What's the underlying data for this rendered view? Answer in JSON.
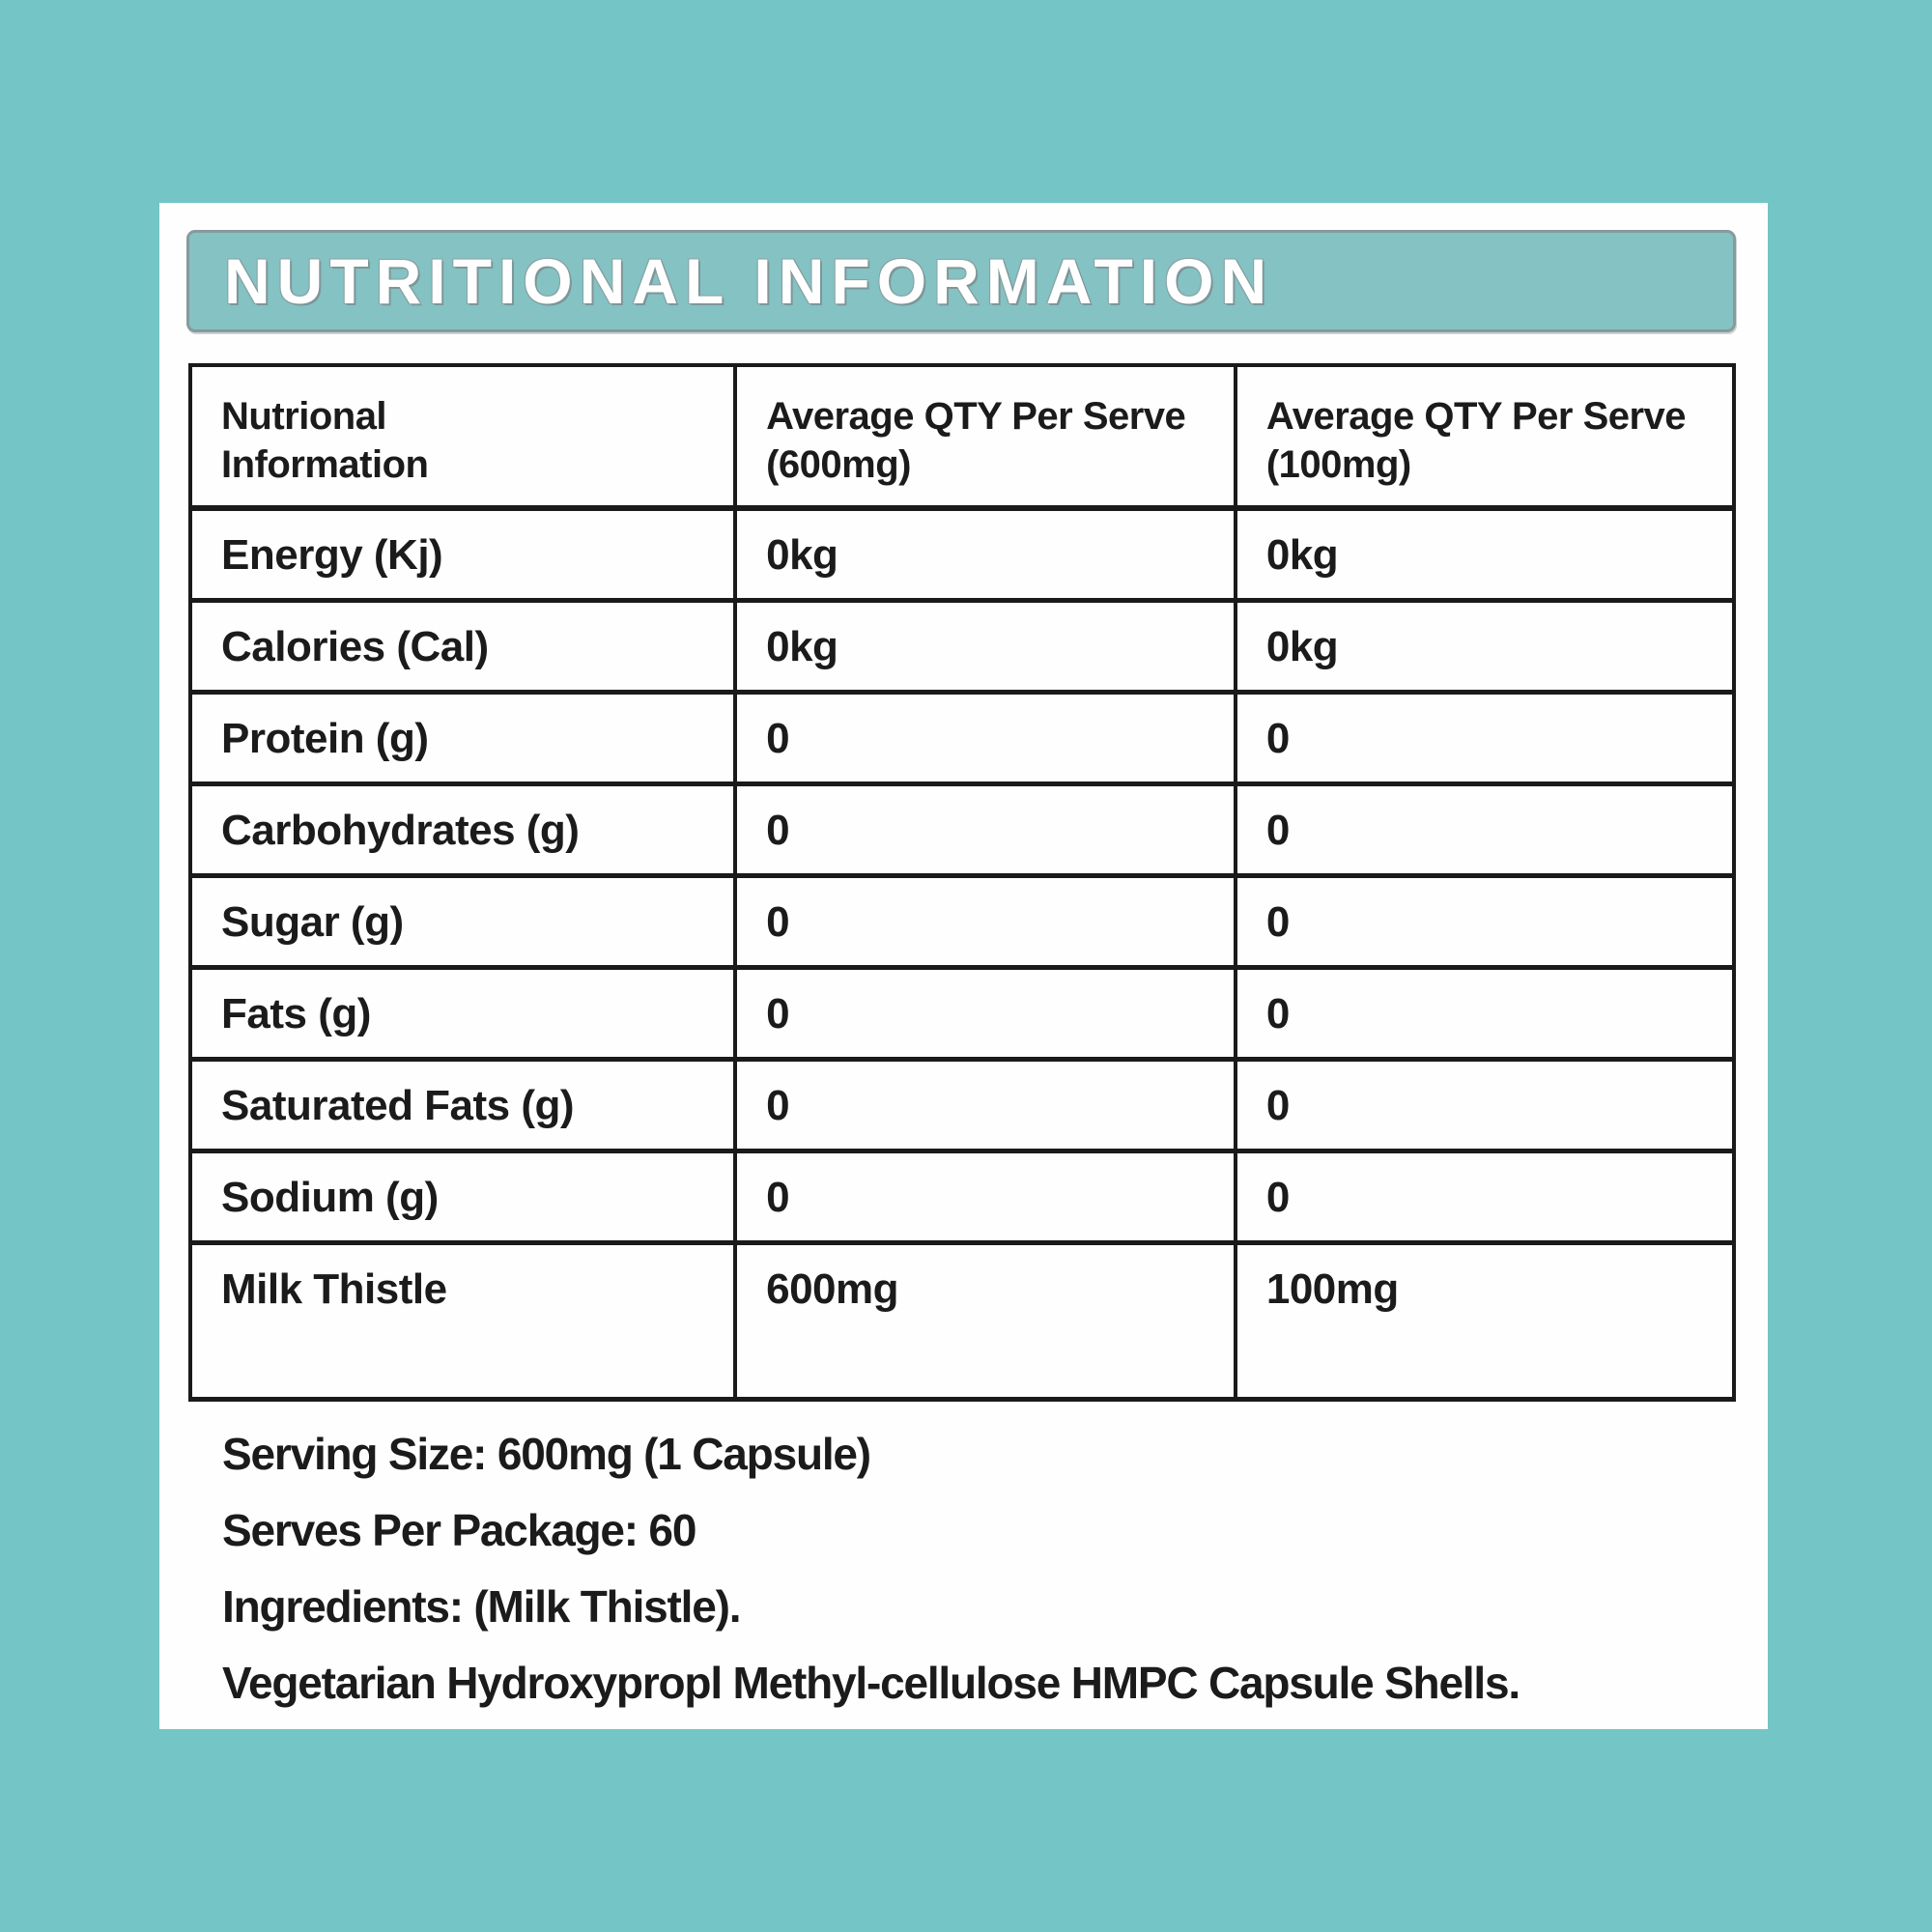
{
  "colors": {
    "page_background": "#73c5c6",
    "card_background": "#fefefe",
    "banner_fill": "#84c2c3",
    "banner_border": "#879a9c",
    "banner_text": "#ffffff",
    "table_border": "#1a1a1a",
    "body_text": "#1b1b1b"
  },
  "header": {
    "title": "NUTRITIONAL INFORMATION"
  },
  "table": {
    "columns": [
      {
        "line1": "Nutrional",
        "line2": "Information"
      },
      {
        "line1": "Average QTY Per Serve",
        "line2": "(600mg)"
      },
      {
        "line1": "Average QTY Per Serve",
        "line2": "(100mg)"
      }
    ],
    "rows": [
      {
        "label": "Energy (Kj)",
        "per_serve_600mg": "0kg",
        "per_serve_100mg": "0kg"
      },
      {
        "label": "Calories (Cal)",
        "per_serve_600mg": "0kg",
        "per_serve_100mg": "0kg"
      },
      {
        "label": "Protein (g)",
        "per_serve_600mg": "0",
        "per_serve_100mg": "0"
      },
      {
        "label": "Carbohydrates (g)",
        "per_serve_600mg": "0",
        "per_serve_100mg": "0"
      },
      {
        "label": "Sugar (g)",
        "per_serve_600mg": "0",
        "per_serve_100mg": "0"
      },
      {
        "label": "Fats (g)",
        "per_serve_600mg": "0",
        "per_serve_100mg": "0"
      },
      {
        "label": "Saturated Fats (g)",
        "per_serve_600mg": "0",
        "per_serve_100mg": "0"
      },
      {
        "label": "Sodium (g)",
        "per_serve_600mg": "0",
        "per_serve_100mg": "0"
      },
      {
        "label": "Milk Thistle",
        "per_serve_600mg": "600mg",
        "per_serve_100mg": "100mg"
      }
    ]
  },
  "footer": {
    "lines": [
      "Serving Size: 600mg (1 Capsule)",
      "Serves Per Package: 60",
      "Ingredients: (Milk Thistle).",
      "Vegetarian Hydroxypropl Methyl-cellulose HMPC Capsule Shells."
    ]
  }
}
